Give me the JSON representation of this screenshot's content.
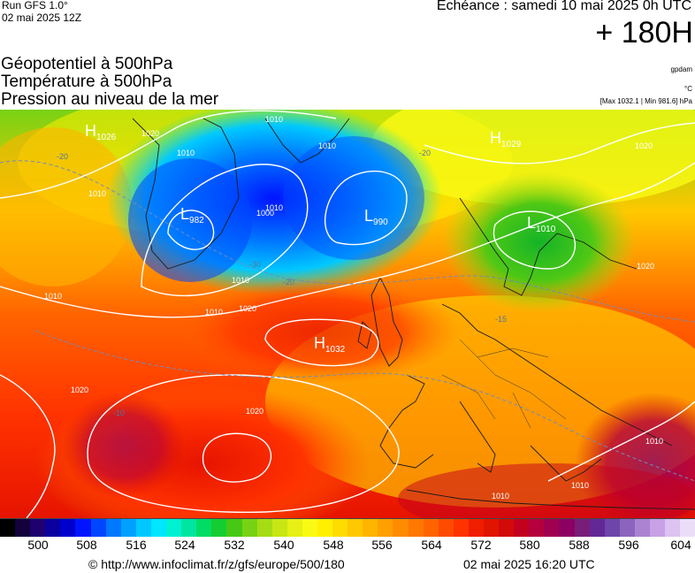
{
  "header": {
    "run": "Run GFS 1.0°",
    "run_date": "02 mai 2025 12Z",
    "echeance": "Echéance : samedi 10 mai 2025 0h UTC",
    "hours": "+ 180H",
    "title_line1": "Géopotentiel à 500hPa",
    "title_line2": "Température à 500hPa",
    "title_line3": "Pression au niveau de la mer",
    "unit_geopotential": "gpdam",
    "unit_temperature": "°C",
    "max_min": "[Max 1032.1 | Min 981.6] hPa"
  },
  "pressure_centers": [
    {
      "type": "H",
      "value": "1026"
    },
    {
      "type": "L",
      "value": "982"
    },
    {
      "type": "L",
      "value": "990"
    },
    {
      "type": "H",
      "value": "1029"
    },
    {
      "type": "L",
      "value": "1010"
    },
    {
      "type": "H",
      "value": "1032"
    }
  ],
  "isobar_labels": [
    "1010",
    "1020",
    "1010",
    "1010",
    "1000",
    "1010",
    "1010",
    "1020",
    "1020",
    "1020",
    "1010",
    "1010",
    "1010",
    "1010",
    "1010",
    "1020",
    "1020",
    "1010"
  ],
  "temperature_labels": [
    "-20",
    "-30",
    "-20",
    "-20",
    "-15",
    "-10"
  ],
  "scale": {
    "ticks": [
      "500",
      "508",
      "516",
      "524",
      "532",
      "540",
      "548",
      "556",
      "564",
      "572",
      "580",
      "588",
      "596",
      "604"
    ],
    "colors": [
      "#000000",
      "#13003c",
      "#1e006e",
      "#0a00a0",
      "#0000cd",
      "#0014ff",
      "#0046ff",
      "#0078ff",
      "#00a0ff",
      "#00c8ff",
      "#00e6ff",
      "#00f0d2",
      "#00e6a0",
      "#00dc64",
      "#14cd32",
      "#46c814",
      "#78d214",
      "#a5dc14",
      "#c8e614",
      "#e6f014",
      "#fafa14",
      "#fff000",
      "#ffdc00",
      "#ffc800",
      "#ffb400",
      "#ffa000",
      "#ff8c00",
      "#ff7800",
      "#ff6400",
      "#ff4b00",
      "#ff3200",
      "#f01e00",
      "#e11400",
      "#d20a0a",
      "#c3001e",
      "#b4003c",
      "#a00050",
      "#8c0064",
      "#781e78",
      "#642896",
      "#6e46aa",
      "#8c64be",
      "#aa82d2",
      "#c8a0e6",
      "#dcc3f0",
      "#ebdcf8"
    ]
  },
  "footer": {
    "copyright": "© http://www.infoclimat.fr/z/gfs/europe/500/180",
    "generated": "02 mai 2025 16:20 UTC"
  }
}
